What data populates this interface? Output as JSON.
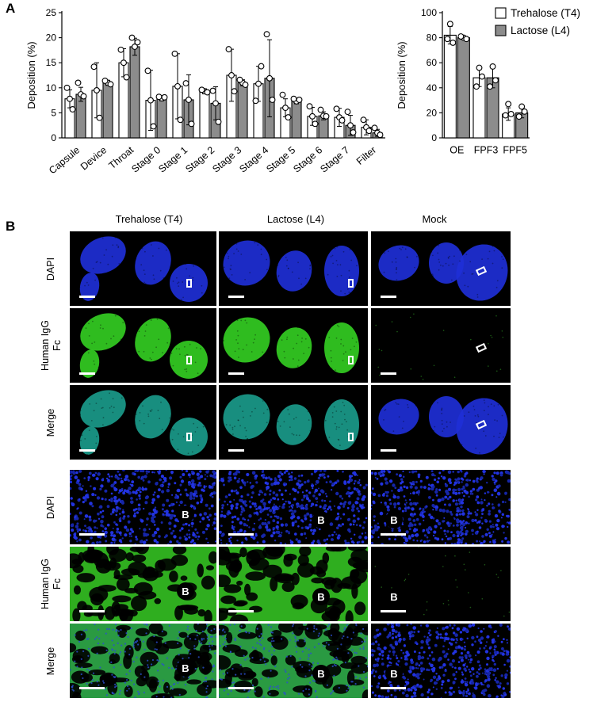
{
  "panel_labels": {
    "a": "A",
    "b": "B"
  },
  "chart_data": [
    {
      "type": "bar",
      "ylabel": "Deposition (%)",
      "xlabel": "",
      "ylim": [
        0,
        25
      ],
      "yticks": [
        0,
        5,
        10,
        15,
        20,
        25
      ],
      "categories": [
        "Capsule",
        "Device",
        "Throat",
        "Stage 0",
        "Stage 1",
        "Stage 2",
        "Stage 3",
        "Stage 4",
        "Stage 5",
        "Stage 6",
        "Stage 7",
        "Filter"
      ],
      "series": [
        {
          "name": "Trehalose (T4)",
          "color": "#ffffff",
          "values": [
            7.8,
            9.5,
            15.0,
            7.5,
            10.3,
            9.3,
            12.5,
            10.8,
            6.0,
            4.3,
            4.1,
            2.1
          ],
          "errors": [
            1.8,
            5.5,
            2.8,
            6.0,
            6.5,
            0.5,
            5.2,
            3.5,
            1.8,
            1.8,
            1.8,
            1.5
          ]
        },
        {
          "name": "Lactose (L4)",
          "color": "#8c8c8c",
          "values": [
            8.7,
            11.0,
            18.2,
            7.9,
            7.6,
            6.9,
            11.0,
            11.9,
            7.3,
            4.4,
            2.5,
            1.0
          ],
          "errors": [
            1.4,
            0.5,
            1.7,
            0.5,
            5.0,
            3.3,
            0.6,
            7.7,
            0.5,
            0.8,
            2.0,
            0.7
          ]
        }
      ],
      "points": [
        [
          [
            7.8,
            10.0,
            5.7
          ],
          [
            8.7,
            11.0,
            8.3
          ]
        ],
        [
          [
            9.5,
            14.2,
            4.0
          ],
          [
            11.0,
            11.4,
            10.7
          ]
        ],
        [
          [
            15.0,
            17.6,
            12.1
          ],
          [
            18.2,
            20.0,
            19.1
          ]
        ],
        [
          [
            7.5,
            13.4,
            2.3
          ],
          [
            7.9,
            8.2,
            8.1
          ]
        ],
        [
          [
            10.3,
            16.8,
            3.6
          ],
          [
            7.6,
            10.9,
            2.8
          ]
        ],
        [
          [
            9.3,
            9.6,
            9.1
          ],
          [
            6.9,
            9.4,
            3.2
          ]
        ],
        [
          [
            12.5,
            17.7,
            9.3
          ],
          [
            11.0,
            11.6,
            10.6
          ]
        ],
        [
          [
            10.8,
            7.4,
            14.3
          ],
          [
            11.9,
            20.7,
            7.6
          ]
        ],
        [
          [
            6.0,
            8.6,
            4.1
          ],
          [
            7.3,
            7.8,
            7.6
          ]
        ],
        [
          [
            4.3,
            6.3,
            2.8
          ],
          [
            4.4,
            5.6,
            4.3
          ]
        ],
        [
          [
            4.1,
            5.8,
            3.5
          ],
          [
            2.5,
            5.2,
            1.1
          ]
        ],
        [
          [
            2.1,
            3.6,
            1.4
          ],
          [
            1.0,
            2.0,
            0.6
          ]
        ]
      ]
    },
    {
      "type": "bar",
      "ylabel": "Deposition (%)",
      "xlabel": "",
      "ylim": [
        0,
        100
      ],
      "yticks": [
        0,
        20,
        40,
        60,
        80,
        100
      ],
      "categories": [
        "OE",
        "FPF3",
        "FPF5"
      ],
      "series": [
        {
          "name": "Trehalose (T4)",
          "color": "#ffffff",
          "values": [
            82,
            48,
            19
          ],
          "errors": [
            7,
            7,
            5
          ]
        },
        {
          "name": "Lactose (L4)",
          "color": "#8c8c8c",
          "values": [
            80,
            48,
            20
          ],
          "errors": [
            1,
            8,
            4
          ]
        }
      ],
      "points": [
        [
          [
            91,
            79,
            76
          ],
          [
            80,
            81,
            79
          ]
        ],
        [
          [
            56,
            41,
            49
          ],
          [
            57,
            41,
            46
          ]
        ],
        [
          [
            27,
            18,
            19
          ],
          [
            25,
            17,
            21
          ]
        ]
      ],
      "legend": {
        "position": "top-right",
        "items": [
          "Trehalose (T4)",
          "Lactose (L4)"
        ]
      }
    }
  ],
  "micrographs": {
    "columns": [
      "Trehalose (T4)",
      "Lactose (L4)",
      "Mock"
    ],
    "rows_low": [
      "DAPI",
      "Human IgG\nFc",
      "Merge"
    ],
    "rows_high": [
      "DAPI",
      "Human IgG\nFc",
      "Merge"
    ],
    "bronchiole_label": "B",
    "colors": {
      "dapi": "#1e2fd6",
      "fc": "#33cc22",
      "merge_blend": "#1a9a8a",
      "background": "#000000"
    }
  }
}
